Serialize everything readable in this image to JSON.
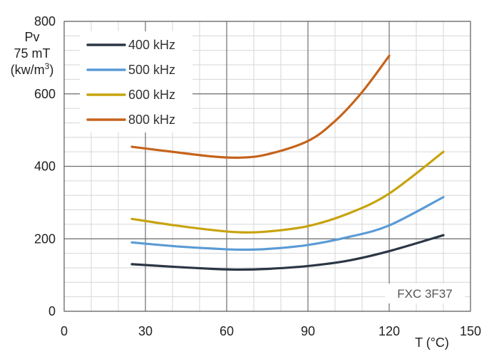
{
  "chart_data": {
    "type": "line",
    "title": "",
    "xlabel": "T (°C)",
    "ylabel_lines": [
      "Pv",
      "75 mT"
    ],
    "ylabel_unit_base": "(kw/m",
    "ylabel_unit_sup": "3",
    "ylabel_unit_close": ")",
    "xlim": [
      0,
      150
    ],
    "ylim": [
      0,
      800
    ],
    "x_major_ticks": [
      0,
      30,
      60,
      90,
      120,
      150
    ],
    "y_major_ticks": [
      0,
      200,
      400,
      600,
      800
    ],
    "x_tick_labels": [
      "0",
      "30",
      "60",
      "90",
      "120",
      "150"
    ],
    "y_tick_labels": [
      "0",
      "200",
      "400",
      "600",
      "800"
    ],
    "grid": true,
    "legend_position": "top-left",
    "annotation": "FXC 3F37",
    "series": [
      {
        "name": "400 kHz",
        "color": "#2b3645",
        "x": [
          25,
          40,
          55,
          65,
          75,
          90,
          105,
          120,
          140
        ],
        "y": [
          130,
          123,
          117,
          115,
          117,
          125,
          140,
          166,
          210
        ]
      },
      {
        "name": "500 kHz",
        "color": "#5b9bd5",
        "x": [
          25,
          40,
          55,
          65,
          75,
          90,
          105,
          120,
          140
        ],
        "y": [
          190,
          180,
          173,
          170,
          172,
          183,
          205,
          237,
          315
        ]
      },
      {
        "name": "600 kHz",
        "color": "#c8a30e",
        "x": [
          25,
          40,
          55,
          65,
          75,
          90,
          105,
          120,
          140
        ],
        "y": [
          255,
          238,
          224,
          218,
          220,
          235,
          270,
          325,
          440
        ]
      },
      {
        "name": "800 kHz",
        "color": "#c5631c",
        "x": [
          25,
          40,
          55,
          65,
          75,
          90,
          100,
          110,
          120
        ],
        "y": [
          454,
          440,
          427,
          424,
          433,
          470,
          525,
          605,
          705
        ]
      }
    ]
  }
}
